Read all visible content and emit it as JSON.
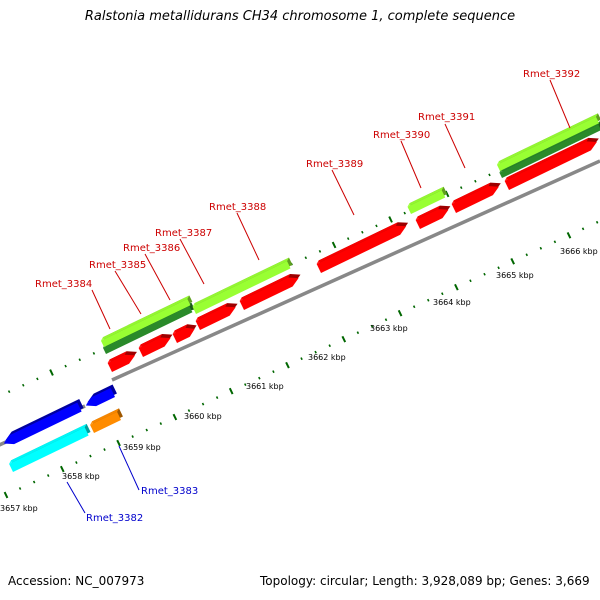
{
  "title": "Ralstonia metallidurans CH34 chromosome 1, complete sequence",
  "footer": {
    "accession": "Accession: NC_007973",
    "summary": "Topology: circular; Length: 3,928,089 bp; Genes: 3,669"
  },
  "scale_labels": [
    "3657 kbp",
    "3658 kbp",
    "3659 kbp",
    "3660 kbp",
    "3661 kbp",
    "3662 kbp",
    "3663 kbp",
    "3664 kbp",
    "3665 kbp",
    "3666 kbp"
  ],
  "genes": [
    {
      "label": "Rmet_3382",
      "color": "#0000cc"
    },
    {
      "label": "Rmet_3383",
      "color": "#0000cc"
    },
    {
      "label": "Rmet_3384",
      "color": "#cc0000"
    },
    {
      "label": "Rmet_3385",
      "color": "#cc0000"
    },
    {
      "label": "Rmet_3386",
      "color": "#cc0000"
    },
    {
      "label": "Rmet_3387",
      "color": "#cc0000"
    },
    {
      "label": "Rmet_3388",
      "color": "#cc0000"
    },
    {
      "label": "Rmet_3389",
      "color": "#cc0000"
    },
    {
      "label": "Rmet_3390",
      "color": "#cc0000"
    },
    {
      "label": "Rmet_3391",
      "color": "#cc0000"
    },
    {
      "label": "Rmet_3392",
      "color": "#cc0000"
    }
  ],
  "colors": {
    "forward_cds": "#ff0000",
    "reverse_cds": "#0000ff",
    "orange_feature": "#ff8c00",
    "cyan_feature": "#00ffff",
    "light_green_feature": "#99ff33",
    "dark_green_feature": "#2a8a2a",
    "backbone": "#888888",
    "ticks": "#006600"
  }
}
